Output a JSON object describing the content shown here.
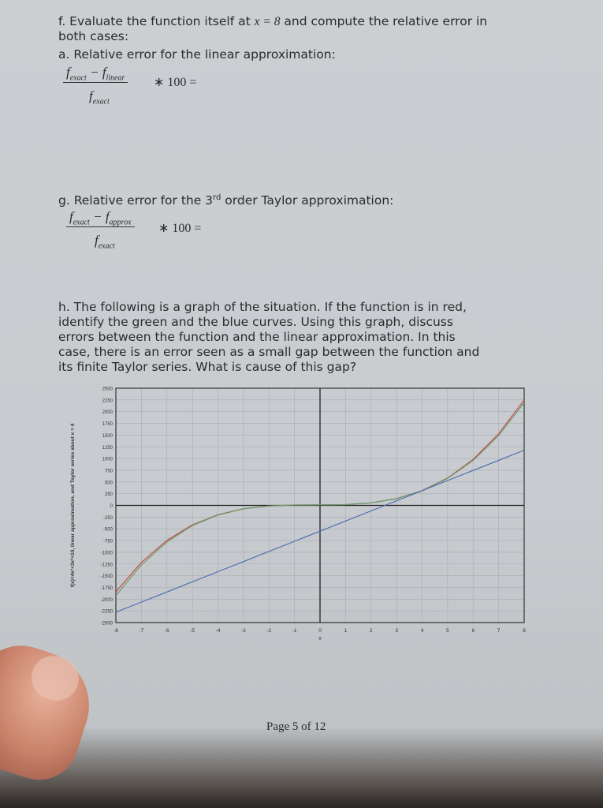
{
  "questions": {
    "f": {
      "line1_pre": "f. Evaluate the function itself at ",
      "x_eq": "x = 8",
      "line1_post": " and compute the relative error in",
      "line2": "both cases:"
    },
    "a": {
      "label": "a. Relative error for the linear approximation:",
      "numerator_a": "f",
      "numerator_a_sub": "exact",
      "minus": " − ",
      "numerator_b": "f",
      "numerator_b_sub": "linear",
      "denominator": "f",
      "denominator_sub": "exact",
      "tail": "∗ 100 ="
    },
    "g": {
      "label_pre": "g. Relative error for the 3",
      "label_sup": "rd",
      "label_post": " order Taylor approximation:",
      "numerator_a": "f",
      "numerator_a_sub": "exact",
      "minus": " − ",
      "numerator_b": "f",
      "numerator_b_sub": "approx",
      "denominator": "f",
      "denominator_sub": "exact",
      "tail": "∗ 100 ="
    },
    "h": {
      "lines": [
        "h. The following is a graph of the situation.  If the function is in red,",
        "identify the green and the blue curves.  Using this graph, discuss",
        "errors between the function and the linear approximation.  In this",
        "case, there is an error seen as a small gap between the function and",
        "its finite Taylor series.  What is cause of this gap?"
      ]
    }
  },
  "chart_data": {
    "type": "line",
    "xlabel": "x",
    "ylabel": "f(x)=4x³+3x²+10, linear approximation, and Taylor series about x = 4",
    "xlim": [
      -8,
      8
    ],
    "ylim": [
      -2500,
      2500
    ],
    "grid": true,
    "x_ticks": [
      "-8",
      "-7",
      "-6",
      "-5",
      "-4",
      "-3",
      "-2",
      "-1",
      "0",
      "1",
      "2",
      "3",
      "4",
      "5",
      "6",
      "7",
      "8"
    ],
    "y_ticks": [
      "2500",
      "2250",
      "2000",
      "1750",
      "1500",
      "1250",
      "1000",
      "750",
      "500",
      "250",
      "0",
      "-250",
      "-500",
      "-750",
      "-1000",
      "-1250",
      "-1500",
      "-1750",
      "-2000",
      "-2250",
      "-2500"
    ],
    "x": [
      -8,
      -7,
      -6,
      -5,
      -4,
      -3,
      -2,
      -1,
      0,
      1,
      2,
      3,
      4,
      5,
      6,
      7,
      8
    ],
    "series": [
      {
        "color": "#c0504d",
        "values": [
          -1846,
          -1215,
          -746,
          -415,
          -198,
          -71,
          -10,
          9,
          10,
          17,
          54,
          145,
          314,
          585,
          982,
          1529,
          2250
        ]
      },
      {
        "color": "#6a9a6a",
        "values": [
          -1930,
          -1270,
          -780,
          -430,
          -205,
          -74,
          -11,
          9,
          10,
          17,
          53,
          143,
          310,
          575,
          960,
          1490,
          2190
        ]
      },
      {
        "color": "#4f6fb0",
        "values": [
          -2278,
          -2062,
          -1846,
          -1630,
          -1414,
          -1198,
          -982,
          -766,
          -550,
          -334,
          -118,
          98,
          314,
          530,
          746,
          962,
          1178
        ]
      }
    ]
  },
  "footer": {
    "page": "Page 5 of 12"
  }
}
